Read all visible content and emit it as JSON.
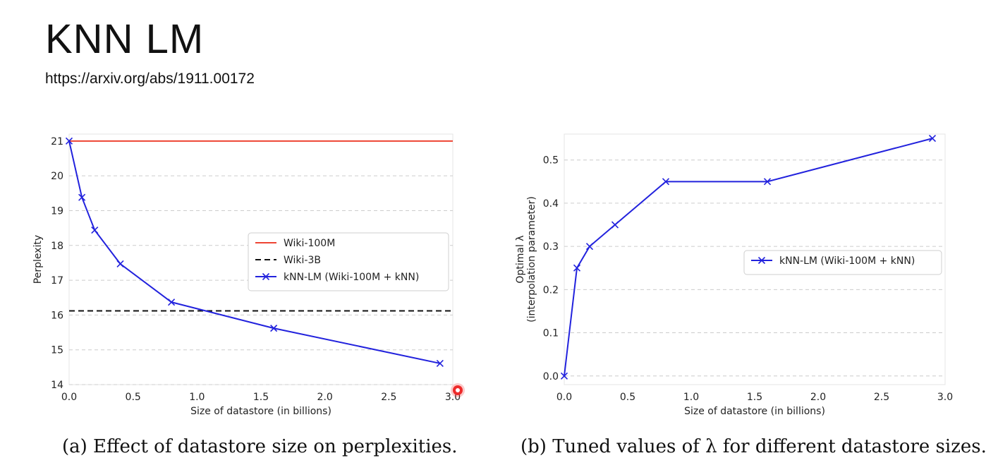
{
  "slide": {
    "title": "KNN LM",
    "url": "https://arxiv.org/abs/1911.00172"
  },
  "colors": {
    "wiki100m": "#ee4433",
    "wiki3b": "#111111",
    "knn": "#2222dd",
    "grid": "#cccccc",
    "frame": "#e4e4e4"
  },
  "chart_data": [
    {
      "id": "a",
      "type": "line",
      "caption": "(a) Effect of datastore size on perplexities.",
      "xlabel": "Size of datastore (in billions)",
      "ylabel": "Perplexity",
      "xlim": [
        0.0,
        3.0
      ],
      "ylim": [
        14,
        21.2
      ],
      "xticks": [
        0.0,
        0.5,
        1.0,
        1.5,
        2.0,
        2.5,
        3.0
      ],
      "xtick_labels": [
        "0.0",
        "0.5",
        "1.0",
        "1.5",
        "2.0",
        "2.5",
        "3.0"
      ],
      "yticks": [
        14,
        15,
        16,
        17,
        18,
        19,
        20,
        21
      ],
      "ytick_labels": [
        "14",
        "15",
        "16",
        "17",
        "18",
        "19",
        "20",
        "21"
      ],
      "grid": true,
      "legend_position": "center-right",
      "series": [
        {
          "name": "Wiki-100M",
          "style": "solid",
          "color_key": "wiki100m",
          "marker": "none",
          "x": [
            0.0,
            3.0
          ],
          "y": [
            21.0,
            21.0
          ]
        },
        {
          "name": "Wiki-3B",
          "style": "dashed",
          "color_key": "wiki3b",
          "marker": "none",
          "x": [
            0.0,
            3.0
          ],
          "y": [
            16.12,
            16.12
          ]
        },
        {
          "name": "kNN-LM (Wiki-100M + kNN)",
          "style": "solid",
          "color_key": "knn",
          "marker": "x",
          "x": [
            0.0,
            0.1,
            0.2,
            0.4,
            0.8,
            1.6,
            2.9
          ],
          "y": [
            21.0,
            19.38,
            18.44,
            17.47,
            16.37,
            15.62,
            14.61
          ]
        }
      ]
    },
    {
      "id": "b",
      "type": "line",
      "caption": "(b) Tuned values of λ for different datastore sizes.",
      "xlabel": "Size of datastore (in billions)",
      "ylabel_line1": "Optimal λ",
      "ylabel_line2": "(interpolation parameter)",
      "xlim": [
        0.0,
        3.0
      ],
      "ylim": [
        -0.02,
        0.56
      ],
      "xticks": [
        0.0,
        0.5,
        1.0,
        1.5,
        2.0,
        2.5,
        3.0
      ],
      "xtick_labels": [
        "0.0",
        "0.5",
        "1.0",
        "1.5",
        "2.0",
        "2.5",
        "3.0"
      ],
      "yticks": [
        0.0,
        0.1,
        0.2,
        0.3,
        0.4,
        0.5
      ],
      "ytick_labels": [
        "0.0",
        "0.1",
        "0.2",
        "0.3",
        "0.4",
        "0.5"
      ],
      "grid": true,
      "legend_position": "center-right",
      "series": [
        {
          "name": "kNN-LM (Wiki-100M + kNN)",
          "style": "solid",
          "color_key": "knn",
          "marker": "x",
          "x": [
            0.0,
            0.1,
            0.2,
            0.4,
            0.8,
            1.6,
            2.9
          ],
          "y": [
            0.0,
            0.25,
            0.3,
            0.35,
            0.45,
            0.45,
            0.55
          ]
        }
      ]
    }
  ]
}
